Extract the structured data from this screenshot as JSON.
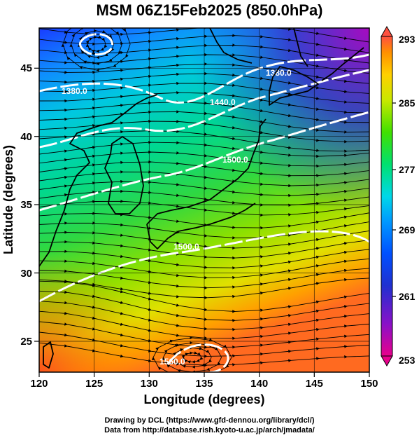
{
  "title": "MSM 06Z15Feb2025 (850.0hPa)",
  "x_axis": {
    "label": "Longitude (degrees)",
    "range": [
      120,
      150
    ],
    "ticks": [
      120,
      125,
      130,
      135,
      140,
      145,
      150
    ]
  },
  "y_axis": {
    "label": "Latitude  (degrees)",
    "range": [
      22.4,
      47.6
    ],
    "ticks": [
      25,
      30,
      35,
      40,
      45
    ]
  },
  "colorbar": {
    "range": [
      253,
      293
    ],
    "labels": [
      293,
      285,
      277,
      269,
      261,
      253
    ],
    "colors": [
      "#e8008c",
      "#3d2fc9",
      "#0050ff",
      "#00c8ff",
      "#00e070",
      "#40e000",
      "#c8e800",
      "#ffd000",
      "#ff9000",
      "#ff5040"
    ]
  },
  "contour_labels": [
    "1380.0",
    "1380.0",
    "1440.0",
    "1500.0",
    "1500.0",
    "1560.0"
  ],
  "credits": {
    "line1": "Drawing by DCL (https://www.gfd-dennou.org/library/dcl/)",
    "line2": "Data from http://database.rish.kyoto-u.ac.jp/arch/jmadata/"
  }
}
